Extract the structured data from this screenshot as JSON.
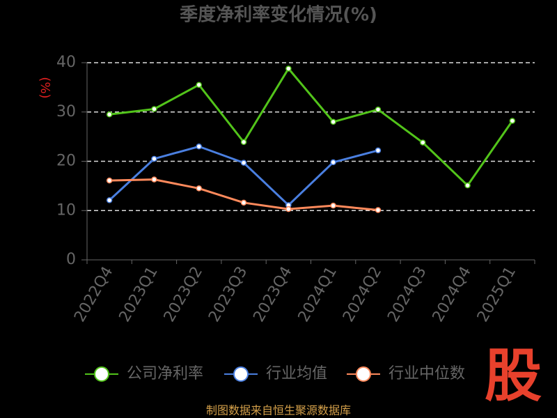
{
  "chart_data": {
    "type": "line",
    "title": "季度净利率变化情况(%)",
    "y_label": "(%)",
    "categories": [
      "2022Q4",
      "2023Q1",
      "2023Q2",
      "2023Q3",
      "2023Q4",
      "2024Q1",
      "2024Q2",
      "2024Q3",
      "2024Q4",
      "2025Q1"
    ],
    "series": [
      {
        "name": "公司净利率",
        "color": "#52c41a",
        "values": [
          29.5,
          30.6,
          35.5,
          23.9,
          38.8,
          28.0,
          30.5,
          23.8,
          15.1,
          28.2
        ]
      },
      {
        "name": "行业均值",
        "color": "#4a7fe0",
        "values": [
          12.1,
          20.5,
          23.0,
          19.7,
          11.1,
          19.8,
          22.2,
          null,
          null,
          null
        ]
      },
      {
        "name": "行业中位数",
        "color": "#ff8a5c",
        "values": [
          16.1,
          16.3,
          14.5,
          11.6,
          10.3,
          11.0,
          10.1,
          null,
          null,
          null
        ]
      }
    ],
    "ylim": [
      0,
      40
    ],
    "yticks": [
      0,
      10,
      20,
      30,
      40
    ],
    "grid": true,
    "source": "制图数据来自恒生聚源数据库",
    "watermark": "股"
  }
}
